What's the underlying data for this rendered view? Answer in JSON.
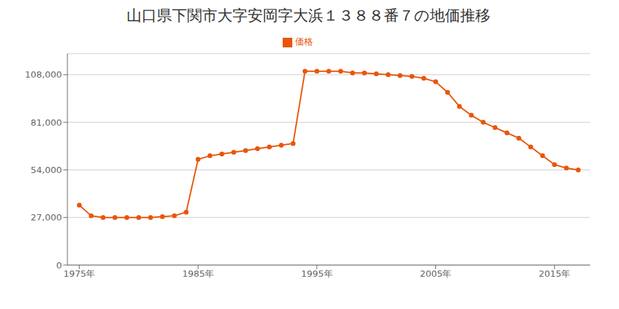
{
  "chart_data": {
    "type": "line",
    "title": "山口県下関市大字安岡字大浜１３８８番７の地価推移",
    "x": [
      1975,
      1976,
      1977,
      1978,
      1979,
      1980,
      1981,
      1982,
      1983,
      1984,
      1985,
      1986,
      1987,
      1988,
      1989,
      1990,
      1991,
      1992,
      1993,
      1994,
      1995,
      1996,
      1997,
      1998,
      1999,
      2000,
      2001,
      2002,
      2003,
      2004,
      2005,
      2006,
      2007,
      2008,
      2009,
      2010,
      2011,
      2012,
      2013,
      2014,
      2015,
      2016,
      2017
    ],
    "series": [
      {
        "name": "価格",
        "color": "#e8560a",
        "marker": "circle",
        "values": [
          34000,
          28000,
          27000,
          27000,
          27000,
          27000,
          27000,
          27500,
          28000,
          30000,
          60000,
          62000,
          63000,
          64000,
          65000,
          66000,
          67000,
          68000,
          69000,
          110000,
          110000,
          110000,
          110000,
          109000,
          109000,
          108500,
          108000,
          107500,
          107000,
          106000,
          104000,
          98000,
          90000,
          85000,
          81000,
          78000,
          75000,
          72000,
          67000,
          62000,
          57000,
          55000,
          54000
        ]
      }
    ],
    "xlim": [
      1974,
      2018
    ],
    "xticks": [
      {
        "value": 1975,
        "label": "1975年"
      },
      {
        "value": 1985,
        "label": "1985年"
      },
      {
        "value": 1995,
        "label": "1995年"
      },
      {
        "value": 2005,
        "label": "2005年"
      },
      {
        "value": 2015,
        "label": "2015年"
      }
    ],
    "ylim": [
      0,
      120000
    ],
    "yticks": [
      0,
      {
        "value": 27000,
        "label": "27,000"
      },
      {
        "value": 54000,
        "label": "54,000"
      },
      {
        "value": 81000,
        "label": "81,000"
      },
      {
        "value": 108000,
        "label": "108,000"
      }
    ],
    "grid": "y",
    "legend": "top"
  }
}
